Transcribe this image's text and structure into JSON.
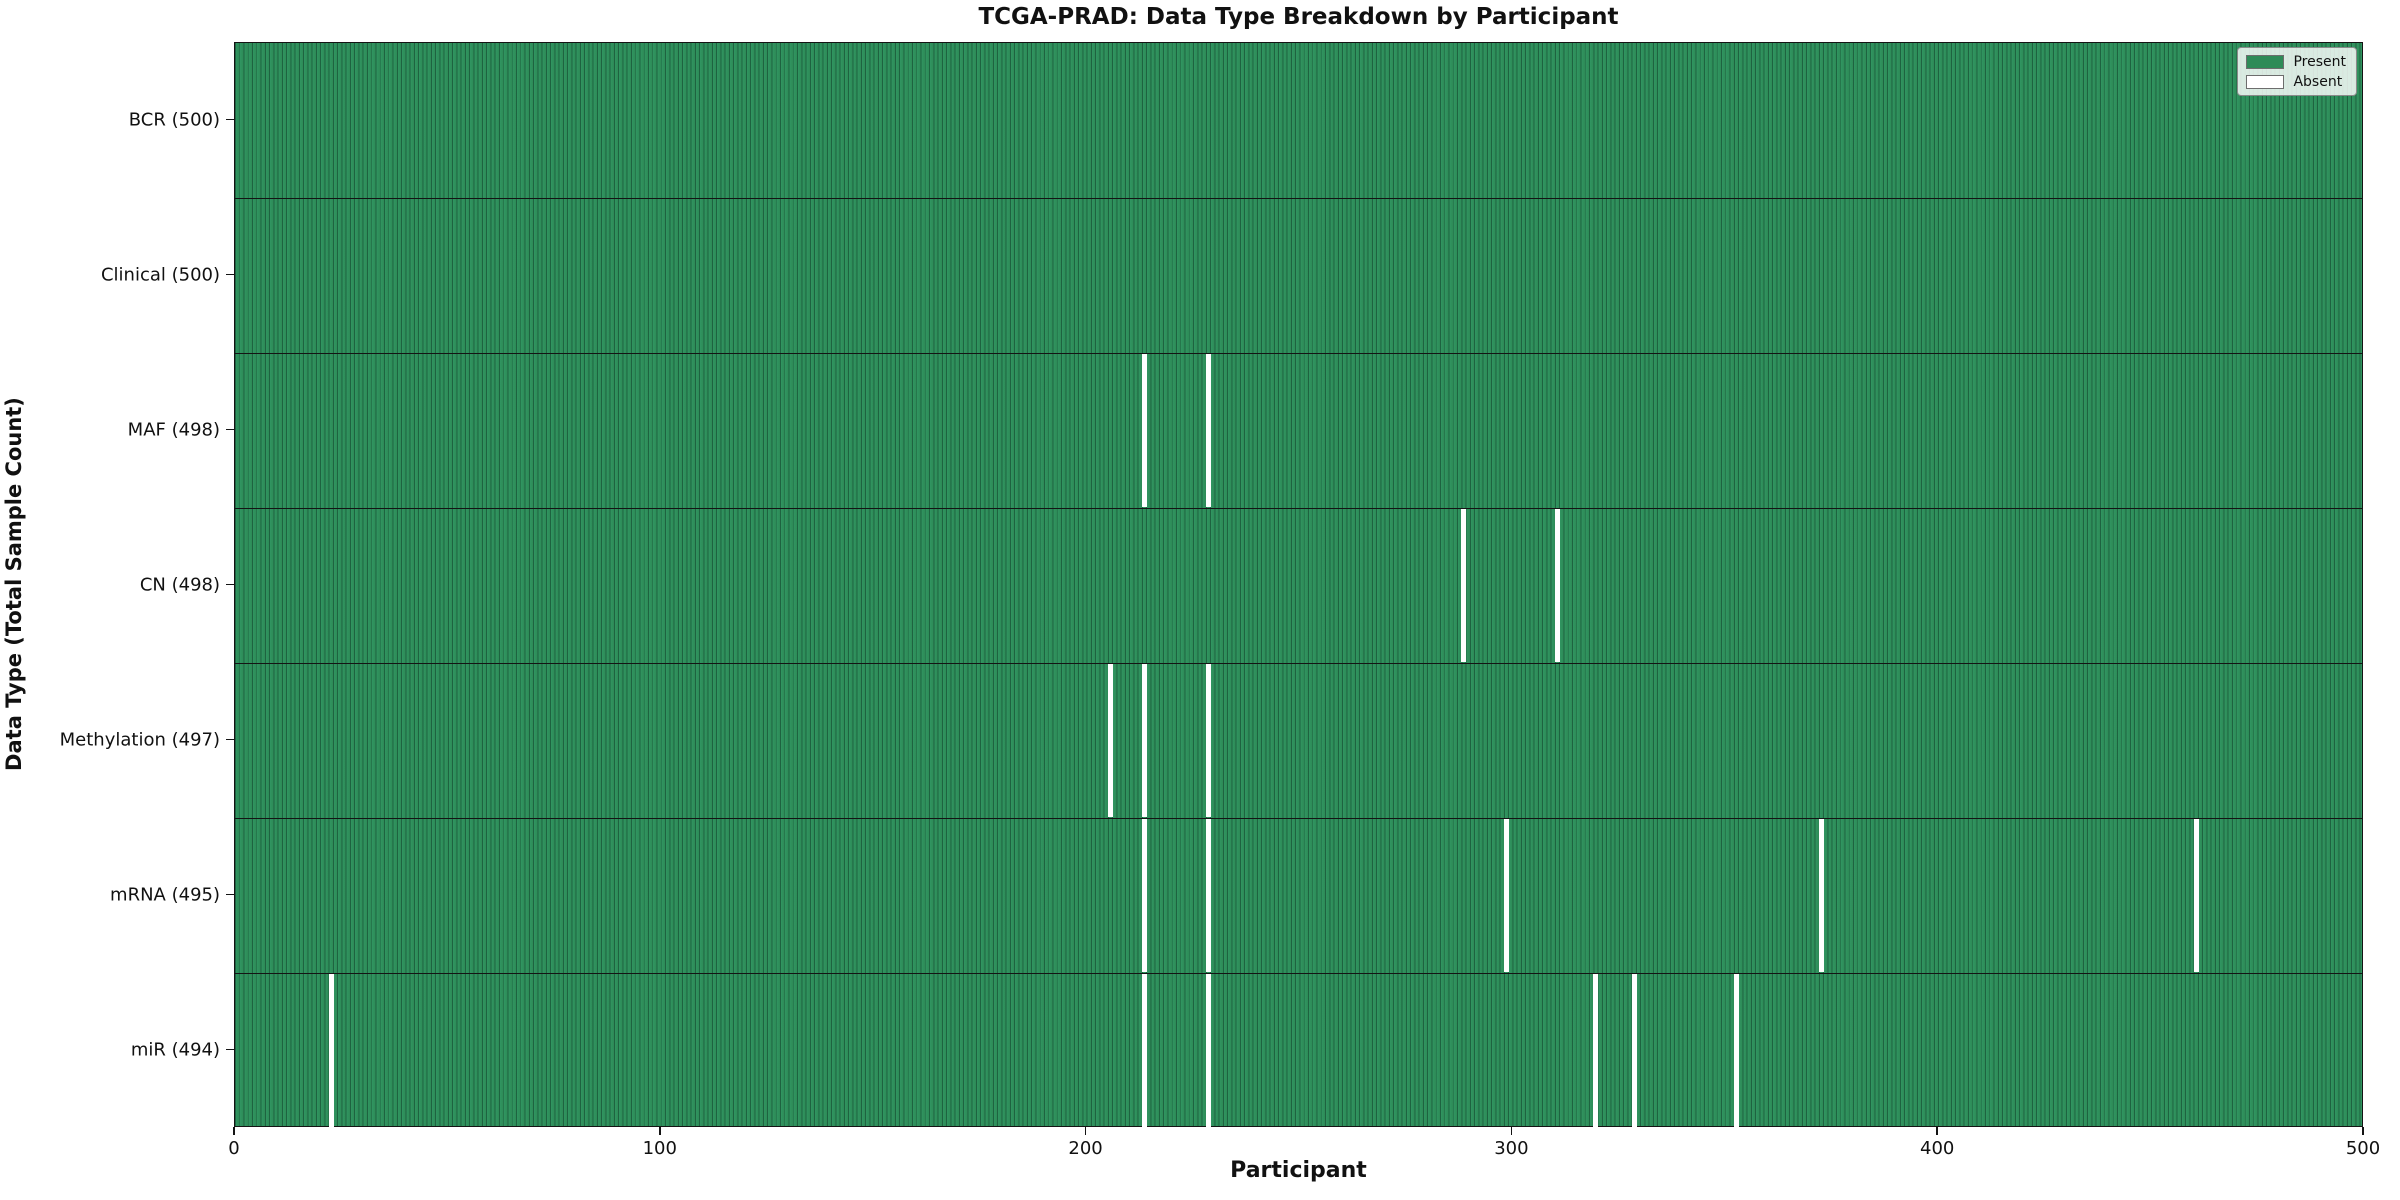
{
  "title": "TCGA-PRAD: Data Type Breakdown by Participant",
  "axes": {
    "xlabel": "Participant",
    "ylabel": "Data Type (Total Sample Count)"
  },
  "legend": {
    "present_label": "Present",
    "absent_label": "Absent"
  },
  "colors": {
    "present": "#2e8b57",
    "present_edge": "#1e6340",
    "absent": "#ffffff",
    "frame": "#141414"
  },
  "chart_data": {
    "type": "heatmap",
    "title": "TCGA-PRAD: Data Type Breakdown by Participant",
    "xlabel": "Participant",
    "ylabel": "Data Type (Total Sample Count)",
    "x_range": [
      0,
      500
    ],
    "x_ticks": [
      0,
      100,
      200,
      300,
      400,
      500
    ],
    "n_participants": 500,
    "grid": false,
    "legend_position": "upper right",
    "legend": [
      {
        "label": "Present",
        "color": "#2e8b57"
      },
      {
        "label": "Absent",
        "color": "#ffffff"
      }
    ],
    "rows": [
      {
        "label": "BCR (500)",
        "name": "BCR",
        "total": 500,
        "absent_participants": []
      },
      {
        "label": "Clinical (500)",
        "name": "Clinical",
        "total": 500,
        "absent_participants": []
      },
      {
        "label": "MAF (498)",
        "name": "MAF",
        "total": 498,
        "absent_participants": [
          213,
          228
        ]
      },
      {
        "label": "CN (498)",
        "name": "CN",
        "total": 498,
        "absent_participants": [
          288,
          310
        ]
      },
      {
        "label": "Methylation (497)",
        "name": "Methylation",
        "total": 497,
        "absent_participants": [
          205,
          213,
          228
        ]
      },
      {
        "label": "mRNA (495)",
        "name": "mRNA",
        "total": 495,
        "absent_participants": [
          213,
          228,
          298,
          372,
          460
        ]
      },
      {
        "label": "miR (494)",
        "name": "miR",
        "total": 494,
        "absent_participants": [
          22,
          213,
          228,
          319,
          328,
          352
        ]
      }
    ]
  }
}
